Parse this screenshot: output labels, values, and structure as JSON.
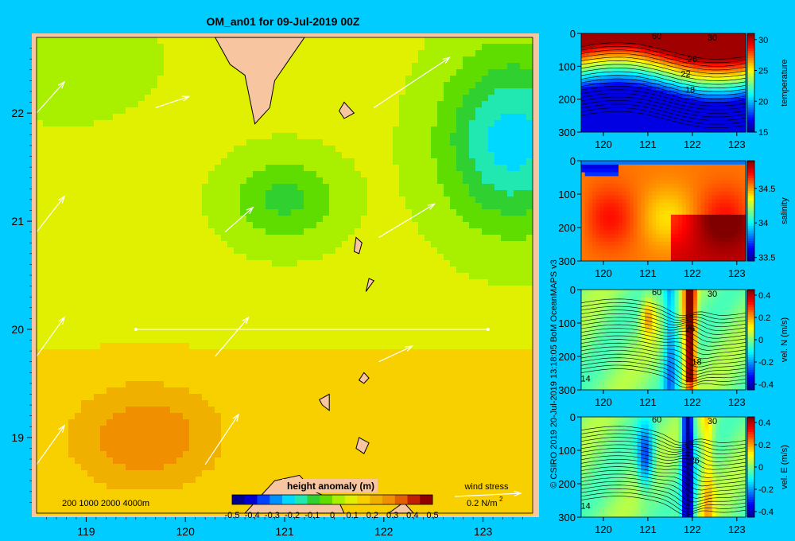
{
  "title": "OM_an01 for 09-Jul-2019 00Z",
  "credit": "© CSIRO 2019   20-Jul-2019 13:18:05 BoM OceanMAPS v3",
  "colors": {
    "background": "#00ccff",
    "land": "#f7c59f"
  },
  "chart_data": [
    {
      "type": "heatmap",
      "name": "main_map",
      "title": "OM_an01 for 09-Jul-2019 00Z",
      "x_ticks": [
        "119",
        "120",
        "121",
        "122",
        "123"
      ],
      "y_ticks": [
        "19",
        "20",
        "21",
        "22"
      ],
      "xlim": [
        118.5,
        123.5
      ],
      "ylim": [
        18.3,
        22.7
      ],
      "depth_legend": [
        "200",
        "1000",
        "2000",
        "4000m"
      ],
      "colorbar": {
        "label": "height anomaly (m)",
        "ticks": [
          "-0.5",
          "-0.4",
          "-0.3",
          "-0.2",
          "-0.1",
          "0",
          "0.1",
          "0.2",
          "0.3",
          "0.4",
          "0.5"
        ],
        "range": [
          -0.5,
          0.5
        ],
        "colors": [
          "#000090",
          "#0000d0",
          "#0040ff",
          "#0090ff",
          "#00d8ff",
          "#20e8b0",
          "#30d030",
          "#60dd00",
          "#a8f000",
          "#e0f000",
          "#f8d000",
          "#f0b000",
          "#f09000",
          "#e06000",
          "#c02000",
          "#900000"
        ]
      },
      "wind_legend": {
        "label": "wind stress",
        "value": "0.2 N/m",
        "superscript": "2"
      },
      "section_line": {
        "lon": [
          119.5,
          123.05
        ],
        "lat": [
          20.0,
          20.0
        ]
      },
      "field_blobs": [
        {
          "lon": 121.0,
          "lat": 21.2,
          "level": -0.08,
          "rlon": 0.55,
          "rlat": 0.4
        },
        {
          "lon": 118.8,
          "lat": 22.5,
          "level": 0.0,
          "rlon": 0.8,
          "rlat": 0.5
        },
        {
          "lon": 123.3,
          "lat": 21.75,
          "level": -0.22,
          "rlon": 0.7,
          "rlat": 0.8
        },
        {
          "lon": 119.6,
          "lat": 19.0,
          "level": 0.25,
          "rlon": 0.7,
          "rlat": 0.45
        }
      ],
      "wind_vectors": [
        {
          "lon": 118.5,
          "lat": 22.0,
          "u": 0.25,
          "v": 0.28
        },
        {
          "lon": 119.7,
          "lat": 22.05,
          "u": 0.3,
          "v": 0.1
        },
        {
          "lon": 121.9,
          "lat": 22.05,
          "u": 0.68,
          "v": 0.45
        },
        {
          "lon": 118.5,
          "lat": 20.9,
          "u": 0.25,
          "v": 0.32
        },
        {
          "lon": 120.4,
          "lat": 20.9,
          "u": 0.25,
          "v": 0.22
        },
        {
          "lon": 121.95,
          "lat": 20.85,
          "u": 0.5,
          "v": 0.3
        },
        {
          "lon": 118.5,
          "lat": 19.75,
          "u": 0.25,
          "v": 0.35
        },
        {
          "lon": 120.3,
          "lat": 19.75,
          "u": 0.3,
          "v": 0.35
        },
        {
          "lon": 121.95,
          "lat": 19.7,
          "u": 0.3,
          "v": 0.14
        },
        {
          "lon": 118.5,
          "lat": 18.75,
          "u": 0.25,
          "v": 0.35
        },
        {
          "lon": 120.2,
          "lat": 18.75,
          "u": 0.3,
          "v": 0.45
        }
      ],
      "land_polygons": [
        [
          [
            120.3,
            22.7
          ],
          [
            121.2,
            22.7
          ],
          [
            121.05,
            22.5
          ],
          [
            120.9,
            22.3
          ],
          [
            120.85,
            22.05
          ],
          [
            120.7,
            21.9
          ],
          [
            120.6,
            22.35
          ],
          [
            120.45,
            22.45
          ]
        ],
        [
          [
            121.6,
            22.1
          ],
          [
            121.65,
            22.05
          ],
          [
            121.7,
            22.0
          ],
          [
            121.6,
            21.95
          ],
          [
            121.55,
            22.02
          ]
        ],
        [
          [
            121.72,
            20.85
          ],
          [
            121.78,
            20.8
          ],
          [
            121.75,
            20.7
          ],
          [
            121.7,
            20.72
          ]
        ],
        [
          [
            121.85,
            20.47
          ],
          [
            121.9,
            20.45
          ],
          [
            121.82,
            20.35
          ]
        ],
        [
          [
            121.8,
            19.6
          ],
          [
            121.85,
            19.55
          ],
          [
            121.8,
            19.5
          ],
          [
            121.75,
            19.53
          ]
        ],
        [
          [
            121.35,
            19.35
          ],
          [
            121.45,
            19.4
          ],
          [
            121.45,
            19.25
          ],
          [
            121.38,
            19.3
          ]
        ],
        [
          [
            121.75,
            19.0
          ],
          [
            121.85,
            18.95
          ],
          [
            121.8,
            18.85
          ],
          [
            121.72,
            18.9
          ]
        ],
        [
          [
            120.6,
            18.3
          ],
          [
            121.6,
            18.3
          ],
          [
            121.55,
            18.4
          ],
          [
            121.3,
            18.5
          ],
          [
            121.15,
            18.65
          ],
          [
            120.9,
            18.6
          ],
          [
            120.75,
            18.45
          ]
        ],
        [
          [
            122.05,
            18.3
          ],
          [
            122.3,
            18.3
          ],
          [
            122.2,
            18.4
          ]
        ]
      ]
    },
    {
      "type": "heatmap",
      "name": "temperature_section",
      "colorbar_label": "temperature",
      "x_ticks": [
        "120",
        "121",
        "122",
        "123"
      ],
      "y_ticks": [
        "0",
        "100",
        "200",
        "300"
      ],
      "xlim": [
        119.5,
        123.2
      ],
      "ylim": [
        300,
        0
      ],
      "colorbar_ticks": [
        "15",
        "20",
        "25",
        "30"
      ],
      "crange": [
        15,
        31
      ],
      "contour_labels": [
        {
          "text": "30",
          "lon": 122.45,
          "depth": 12
        },
        {
          "text": "26",
          "lon": 122.0,
          "depth": 78
        },
        {
          "text": "22",
          "lon": 121.85,
          "depth": 122
        },
        {
          "text": "18",
          "lon": 121.95,
          "depth": 170
        },
        {
          "text": "60",
          "lon": 121.2,
          "depth": 7
        }
      ]
    },
    {
      "type": "heatmap",
      "name": "salinity_section",
      "colorbar_label": "salinity",
      "x_ticks": [
        "120",
        "121",
        "122",
        "123"
      ],
      "y_ticks": [
        "0",
        "100",
        "200",
        "300"
      ],
      "xlim": [
        119.5,
        123.2
      ],
      "ylim": [
        300,
        0
      ],
      "colorbar_ticks": [
        "33.5",
        "34",
        "34.5"
      ],
      "crange": [
        33.45,
        34.9
      ]
    },
    {
      "type": "heatmap",
      "name": "velN_section",
      "colorbar_label": "vel. N (m/s)",
      "x_ticks": [
        "120",
        "121",
        "122",
        "123"
      ],
      "y_ticks": [
        "0",
        "100",
        "200",
        "300"
      ],
      "xlim": [
        119.5,
        123.2
      ],
      "ylim": [
        300,
        0
      ],
      "colorbar_ticks": [
        "-0.4",
        "-0.2",
        "0",
        "0.2",
        "0.4"
      ],
      "crange": [
        -0.45,
        0.45
      ],
      "contour_labels": [
        {
          "text": "30",
          "lon": 122.45,
          "depth": 12
        },
        {
          "text": "26",
          "lon": 121.95,
          "depth": 115
        },
        {
          "text": "18",
          "lon": 122.1,
          "depth": 215
        },
        {
          "text": "14",
          "lon": 119.6,
          "depth": 265
        },
        {
          "text": "60",
          "lon": 121.2,
          "depth": 7
        }
      ]
    },
    {
      "type": "heatmap",
      "name": "velE_section",
      "colorbar_label": "vel. E (m/s)",
      "x_ticks": [
        "120",
        "121",
        "122",
        "123"
      ],
      "y_ticks": [
        "0",
        "100",
        "200",
        "300"
      ],
      "xlim": [
        119.5,
        123.2
      ],
      "ylim": [
        300,
        0
      ],
      "colorbar_ticks": [
        "-0.4",
        "-0.2",
        "0",
        "0.2",
        "0.4"
      ],
      "crange": [
        -0.45,
        0.45
      ],
      "contour_labels": [
        {
          "text": "30",
          "lon": 122.45,
          "depth": 12
        },
        {
          "text": "26",
          "lon": 122.05,
          "depth": 130
        },
        {
          "text": "14",
          "lon": 119.6,
          "depth": 265
        },
        {
          "text": "60",
          "lon": 121.2,
          "depth": 7
        }
      ]
    }
  ]
}
